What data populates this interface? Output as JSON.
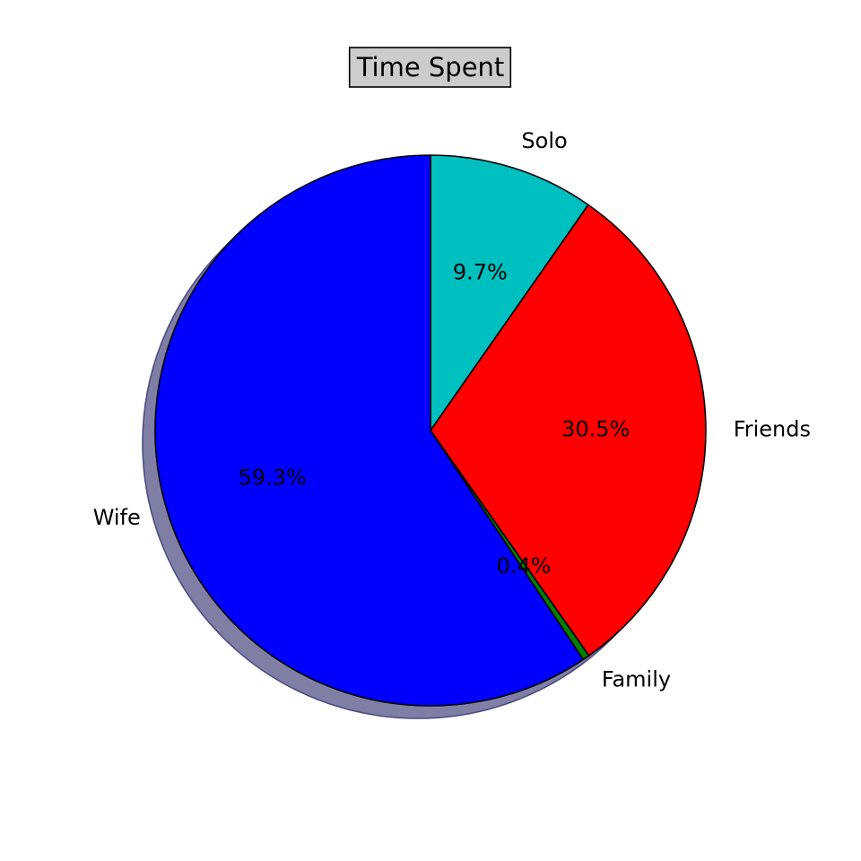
{
  "chart_data": {
    "type": "pie",
    "title": "Time Spent",
    "slices": [
      {
        "label": "Solo",
        "value": 9.7,
        "pct_label": "9.7%",
        "color": "#00bfbf"
      },
      {
        "label": "Friends",
        "value": 30.5,
        "pct_label": "30.5%",
        "color": "#ff0000"
      },
      {
        "label": "Family",
        "value": 0.4,
        "pct_label": "0.4%",
        "color": "#008000"
      },
      {
        "label": "Wife",
        "value": 59.3,
        "pct_label": "59.3%",
        "color": "#0000ff"
      }
    ],
    "start_angle_deg": 90,
    "direction": "clockwise",
    "shadow": true,
    "title_box_color": "#cccccc",
    "legend": "none"
  }
}
